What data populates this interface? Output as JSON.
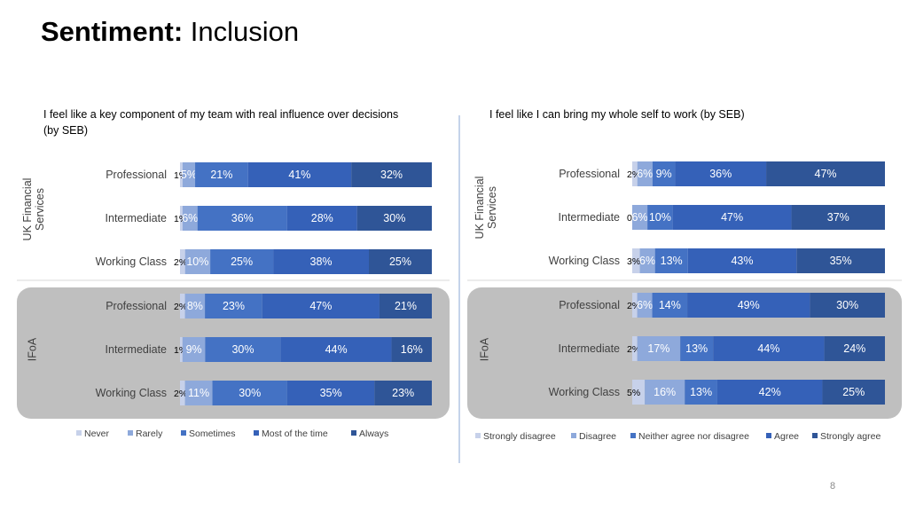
{
  "page": {
    "title_bold": "Sentiment:",
    "title_rest": " Inclusion",
    "page_number": "8"
  },
  "colors": {
    "level1": "#c7d1ea",
    "level2": "#8ea9db",
    "level3": "#4472c4",
    "level4": "#3561b8",
    "level5": "#2f5597",
    "group_bg": "#bfbfbf"
  },
  "chart_data": [
    {
      "type": "bar",
      "orientation": "horizontal-stacked",
      "title": "I feel like a key component of my team with real influence over decisions  (by SEB)",
      "groups": [
        "UK Financial Services",
        "IFoA"
      ],
      "categories": [
        "Professional",
        "Intermediate",
        "Working Class"
      ],
      "legend": [
        "Never",
        "Rarely",
        "Sometimes",
        "Most of the time",
        "Always"
      ],
      "legend_position": "bottom",
      "rows": [
        {
          "group": "UK Financial Services",
          "category": "Professional",
          "values": [
            1,
            5,
            21,
            41,
            32
          ],
          "labels": [
            "1%",
            "5%",
            "21%",
            "41%",
            "32%"
          ]
        },
        {
          "group": "UK Financial Services",
          "category": "Intermediate",
          "values": [
            1,
            6,
            36,
            28,
            30
          ],
          "labels": [
            "1%",
            "6%",
            "36%",
            "28%",
            "30%"
          ]
        },
        {
          "group": "UK Financial Services",
          "category": "Working Class",
          "values": [
            2,
            10,
            25,
            38,
            25
          ],
          "labels": [
            "2%",
            "10%",
            "25%",
            "38%",
            "25%"
          ]
        },
        {
          "group": "IFoA",
          "category": "Professional",
          "values": [
            2,
            8,
            23,
            47,
            21
          ],
          "labels": [
            "2%",
            "8%",
            "23%",
            "47%",
            "21%"
          ]
        },
        {
          "group": "IFoA",
          "category": "Intermediate",
          "values": [
            1,
            9,
            30,
            44,
            16
          ],
          "labels": [
            "1%",
            "9%",
            "30%",
            "44%",
            "16%"
          ]
        },
        {
          "group": "IFoA",
          "category": "Working Class",
          "values": [
            2,
            11,
            30,
            35,
            23
          ],
          "labels": [
            "2%",
            "11%",
            "30%",
            "35%",
            "23%"
          ]
        }
      ]
    },
    {
      "type": "bar",
      "orientation": "horizontal-stacked",
      "title": "I feel like I can bring my whole self to work (by SEB)",
      "groups": [
        "UK Financial Services",
        "IFoA"
      ],
      "categories": [
        "Professional",
        "Intermediate",
        "Working Class"
      ],
      "legend": [
        "Strongly disagree",
        "Disagree",
        "Neither agree nor disagree",
        "Agree",
        "Strongly agree"
      ],
      "legend_position": "bottom",
      "rows": [
        {
          "group": "UK Financial Services",
          "category": "Professional",
          "values": [
            2,
            6,
            9,
            36,
            47
          ],
          "labels": [
            "2%",
            "6%",
            "9%",
            "36%",
            "47%"
          ]
        },
        {
          "group": "UK Financial Services",
          "category": "Intermediate",
          "values": [
            0,
            6,
            10,
            47,
            37
          ],
          "labels": [
            "0%",
            "6%",
            "10%",
            "47%",
            "37%"
          ]
        },
        {
          "group": "UK Financial Services",
          "category": "Working Class",
          "values": [
            3,
            6,
            13,
            43,
            35
          ],
          "labels": [
            "3%",
            "6%",
            "13%",
            "43%",
            "35%"
          ]
        },
        {
          "group": "IFoA",
          "category": "Professional",
          "values": [
            2,
            6,
            14,
            49,
            30
          ],
          "labels": [
            "2%",
            "6%",
            "14%",
            "49%",
            "30%"
          ]
        },
        {
          "group": "IFoA",
          "category": "Intermediate",
          "values": [
            2,
            17,
            13,
            44,
            24
          ],
          "labels": [
            "2%",
            "17%",
            "13%",
            "44%",
            "24%"
          ]
        },
        {
          "group": "IFoA",
          "category": "Working Class",
          "values": [
            5,
            16,
            13,
            42,
            25
          ],
          "labels": [
            "5%",
            "16%",
            "13%",
            "42%",
            "25%"
          ]
        }
      ]
    }
  ]
}
